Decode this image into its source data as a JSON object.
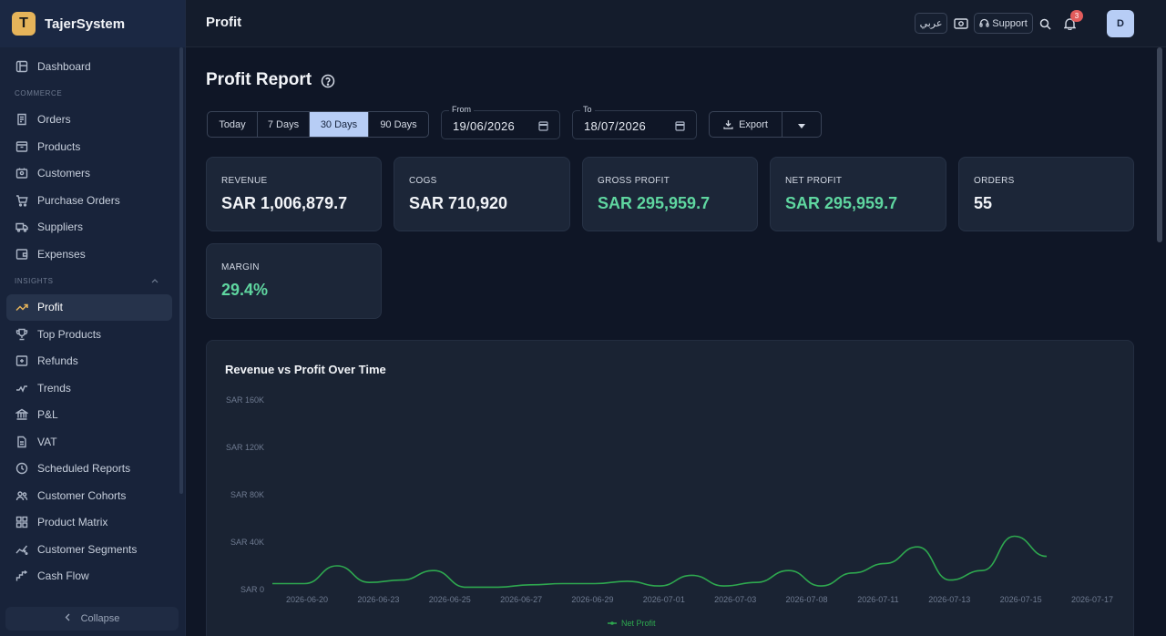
{
  "brand": {
    "logo_letter": "T",
    "name": "TajerSystem"
  },
  "sidebar": {
    "top_items": [
      {
        "label": "Dashboard",
        "icon": "dashboard-icon"
      }
    ],
    "commerce_label": "COMMERCE",
    "commerce_items": [
      {
        "label": "Orders",
        "icon": "receipt-icon"
      },
      {
        "label": "Products",
        "icon": "box-icon"
      },
      {
        "label": "Customers",
        "icon": "contacts-icon"
      },
      {
        "label": "Purchase Orders",
        "icon": "cart-icon"
      },
      {
        "label": "Suppliers",
        "icon": "truck-icon"
      },
      {
        "label": "Expenses",
        "icon": "wallet-icon"
      }
    ],
    "insights_label": "INSIGHTS",
    "insights_items": [
      {
        "label": "Profit",
        "icon": "trending-up-icon",
        "active": true
      },
      {
        "label": "Top Products",
        "icon": "trophy-icon"
      },
      {
        "label": "Refunds",
        "icon": "refund-icon"
      },
      {
        "label": "Trends",
        "icon": "trend-icon"
      },
      {
        "label": "P&L",
        "icon": "bank-icon"
      },
      {
        "label": "VAT",
        "icon": "document-icon"
      },
      {
        "label": "Scheduled Reports",
        "icon": "clock-icon"
      },
      {
        "label": "Customer Cohorts",
        "icon": "users-icon"
      },
      {
        "label": "Product Matrix",
        "icon": "grid-icon"
      },
      {
        "label": "Customer Segments",
        "icon": "scatter-icon"
      },
      {
        "label": "Cash Flow",
        "icon": "cashflow-icon"
      }
    ],
    "collapse_label": "Collapse"
  },
  "header": {
    "title": "Profit",
    "lang_label": "عربي",
    "support_label": "Support",
    "notification_count": "3",
    "avatar_initial": "D"
  },
  "main": {
    "page_title": "Profit Report",
    "ranges": [
      "Today",
      "7 Days",
      "30 Days",
      "90 Days"
    ],
    "active_range": "30 Days",
    "from_label": "From",
    "from_value": "19/06/2026",
    "to_label": "To",
    "to_value": "18/07/2026",
    "export_label": "Export"
  },
  "kpis": [
    {
      "label": "REVENUE",
      "value": "SAR 1,006,879.7",
      "accent": false
    },
    {
      "label": "COGS",
      "value": "SAR 710,920",
      "accent": false
    },
    {
      "label": "GROSS PROFIT",
      "value": "SAR 295,959.7",
      "accent": true
    },
    {
      "label": "NET PROFIT",
      "value": "SAR 295,959.7",
      "accent": true
    },
    {
      "label": "ORDERS",
      "value": "55",
      "accent": false
    },
    {
      "label": "MARGIN",
      "value": "29.4%",
      "accent": true
    }
  ],
  "colors": {
    "accent_green": "#5fd6a0",
    "line_green": "#2ea84f",
    "brand_gold": "#e6b45a",
    "active_tab": "#b7cdf5"
  },
  "chart_data": {
    "type": "line",
    "title": "Revenue vs Profit Over Time",
    "y_ticks": [
      "SAR 0",
      "SAR 40K",
      "SAR 80K",
      "SAR 120K",
      "SAR 160K"
    ],
    "ylim": [
      0,
      160000
    ],
    "x_ticks": [
      "2026-06-20",
      "2026-06-23",
      "2026-06-25",
      "2026-06-27",
      "2026-06-29",
      "2026-07-01",
      "2026-07-03",
      "2026-07-08",
      "2026-07-11",
      "2026-07-13",
      "2026-07-15",
      "2026-07-17"
    ],
    "grid": false,
    "legend": "bottom",
    "series": [
      {
        "name": "Net Profit",
        "color": "#2ea84f",
        "values": [
          5000,
          5000,
          20000,
          6000,
          8000,
          16000,
          2000,
          2000,
          4000,
          5000,
          5000,
          7000,
          3000,
          12000,
          3000,
          6000,
          16000,
          3000,
          14000,
          22000,
          36000,
          8000,
          16000,
          45000,
          28000
        ]
      }
    ]
  }
}
